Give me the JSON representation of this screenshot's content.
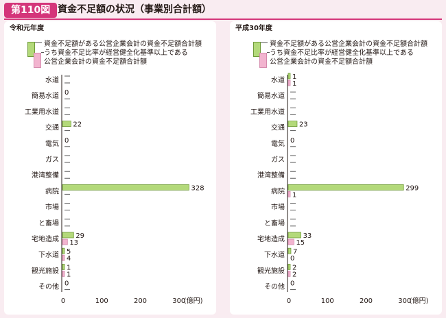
{
  "header": {
    "badge": "第110図",
    "title": "資金不足額の状況（事業別合計額）"
  },
  "legend": {
    "series1": "資金不足額がある公営企業会計の資金不足額合計額",
    "series2_line1": "うち資金不足比率が経営健全化基準以上である",
    "series2_line2": "公営企業会計の資金不足額合計額"
  },
  "colors": {
    "accent": "#d4357a",
    "series1": "#b3d97a",
    "series1_stroke": "#6e9a38",
    "series2": "#f2b4cf",
    "series2_stroke": "#d58aad"
  },
  "chart_data": [
    {
      "type": "bar",
      "orientation": "horizontal",
      "title": "令和元年度",
      "categories": [
        "水道",
        "簡易水道",
        "工業用水道",
        "交通",
        "電気",
        "ガス",
        "港湾整備",
        "病院",
        "市場",
        "と畜場",
        "宅地造成",
        "下水道",
        "観光施設",
        "その他"
      ],
      "series": [
        {
          "name": "資金不足額がある公営企業会計の資金不足額合計額",
          "values": [
            null,
            0,
            null,
            22,
            0,
            null,
            null,
            328,
            null,
            null,
            29,
            5,
            1,
            0
          ]
        },
        {
          "name": "うち資金不足比率が経営健全化基準以上である公営企業会計の資金不足額合計額",
          "values": [
            null,
            null,
            null,
            null,
            null,
            null,
            null,
            null,
            null,
            null,
            13,
            4,
            1,
            null
          ]
        }
      ],
      "xticks": [
        "0",
        "100",
        "200",
        "300"
      ],
      "xunit": "(億円)",
      "xlim": [
        0,
        330
      ]
    },
    {
      "type": "bar",
      "orientation": "horizontal",
      "title": "平成30年度",
      "categories": [
        "水道",
        "簡易水道",
        "工業用水道",
        "交通",
        "電気",
        "ガス",
        "港湾整備",
        "病院",
        "市場",
        "と畜場",
        "宅地造成",
        "下水道",
        "観光施設",
        "その他"
      ],
      "series": [
        {
          "name": "資金不足額がある公営企業会計の資金不足額合計額",
          "values": [
            1,
            null,
            null,
            23,
            0,
            null,
            null,
            299,
            null,
            null,
            33,
            7,
            2,
            0
          ]
        },
        {
          "name": "うち資金不足比率が経営健全化基準以上である公営企業会計の資金不足額合計額",
          "values": [
            1,
            null,
            null,
            null,
            null,
            null,
            null,
            1,
            null,
            null,
            15,
            0,
            2,
            null
          ]
        }
      ],
      "xticks": [
        "0",
        "100",
        "200",
        "300"
      ],
      "xunit": "(億円)",
      "xlim": [
        0,
        330
      ]
    }
  ]
}
